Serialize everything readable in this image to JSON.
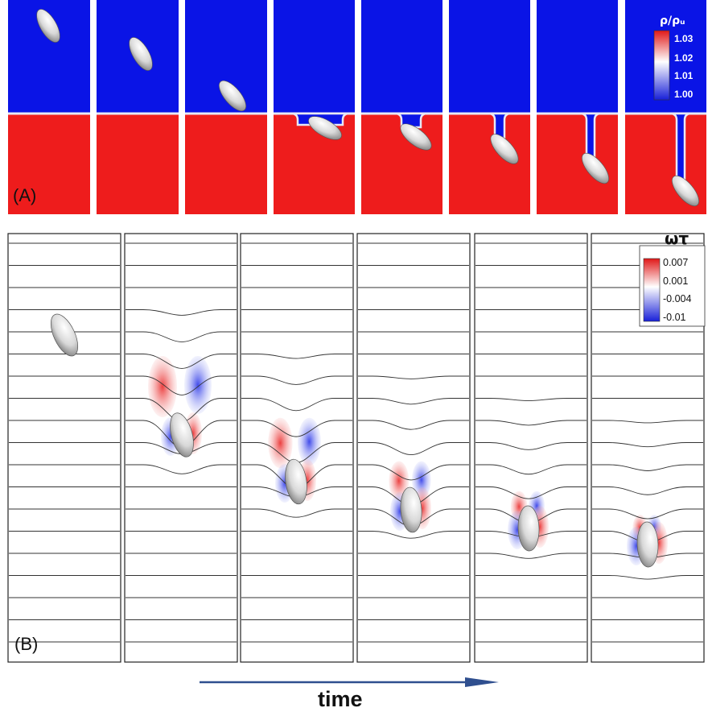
{
  "panel_a": {
    "label": "(A)",
    "legend": {
      "title": "ρ/ρᵤ",
      "ticks": [
        "1.03",
        "1.02",
        "1.01",
        "1.00"
      ]
    },
    "colors": {
      "top": "#0a14e6",
      "bottom": "#ee1c1c",
      "interface": "#e8e8f4"
    },
    "frame_count": 8
  },
  "panel_b": {
    "label": "(B)",
    "legend": {
      "title": "ωτ",
      "ticks": [
        "0.007",
        "0.001",
        "-0.004",
        "-0.01"
      ]
    },
    "frame_count": 6
  },
  "time_axis": {
    "label": "time",
    "arrow_color": "#2f4f8f"
  }
}
